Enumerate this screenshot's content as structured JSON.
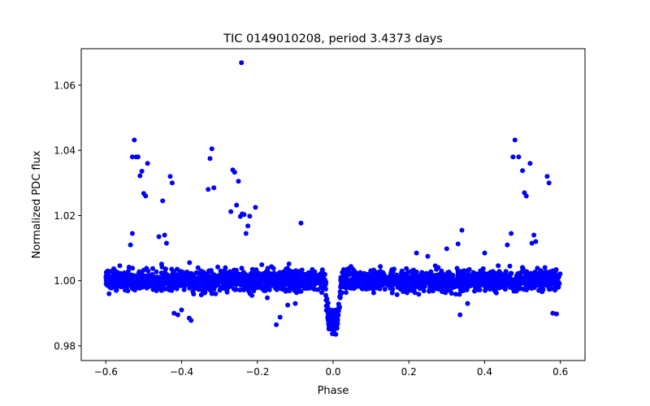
{
  "chart_data": {
    "type": "scatter",
    "title": "TIC 0149010208, period 3.4373 days",
    "xlabel": "Phase",
    "ylabel": "Normalized PDC flux",
    "xlim": [
      -0.665,
      0.665
    ],
    "ylim": [
      0.9755,
      1.0712
    ],
    "xticks": [
      -0.6,
      -0.4,
      -0.2,
      0.0,
      0.2,
      0.4,
      0.6
    ],
    "xtick_labels": [
      "−0.6",
      "−0.4",
      "−0.2",
      "0.0",
      "0.2",
      "0.4",
      "0.6"
    ],
    "yticks": [
      0.98,
      1.0,
      1.02,
      1.04,
      1.06
    ],
    "ytick_labels": [
      "0.98",
      "1.00",
      "1.02",
      "1.04",
      "1.06"
    ],
    "grid": false,
    "marker_color": "#0000ff",
    "series": [
      {
        "name": "",
        "baseline": 1.0,
        "baseline_scatter": 0.0028,
        "phase_range": [
          -0.6,
          0.6
        ],
        "transit": {
          "center_phase": 0.0,
          "half_width": 0.02,
          "depth": 0.015
        },
        "outliers": [
          [
            -0.545,
            1.0015
          ],
          [
            -0.53,
            1.038
          ],
          [
            -0.525,
            1.0432
          ],
          [
            -0.52,
            1.038
          ],
          [
            -0.515,
            1.038
          ],
          [
            -0.51,
            1.0322
          ],
          [
            -0.505,
            1.0336
          ],
          [
            -0.5,
            1.0268
          ],
          [
            -0.495,
            1.026
          ],
          [
            -0.49,
            1.036
          ],
          [
            -0.45,
            1.0245
          ],
          [
            -0.44,
            1.0115
          ],
          [
            -0.43,
            1.032
          ],
          [
            -0.425,
            1.03
          ],
          [
            -0.53,
            1.0145
          ],
          [
            -0.535,
            1.011
          ],
          [
            -0.46,
            1.0135
          ],
          [
            -0.445,
            1.014
          ],
          [
            -0.42,
            0.99
          ],
          [
            -0.41,
            0.9895
          ],
          [
            -0.4,
            0.991
          ],
          [
            -0.38,
            0.9885
          ],
          [
            -0.375,
            0.9878
          ],
          [
            -0.33,
            1.028
          ],
          [
            -0.32,
            1.0405
          ],
          [
            -0.325,
            1.0375
          ],
          [
            -0.315,
            1.0285
          ],
          [
            -0.27,
            1.0212
          ],
          [
            -0.265,
            1.034
          ],
          [
            -0.26,
            1.0333
          ],
          [
            -0.25,
            1.0305
          ],
          [
            -0.245,
            1.0197
          ],
          [
            -0.24,
            1.0205
          ],
          [
            -0.235,
            1.0203
          ],
          [
            -0.23,
            1.0145
          ],
          [
            -0.225,
            1.0168
          ],
          [
            -0.22,
            1.0198
          ],
          [
            -0.205,
            1.0225
          ],
          [
            -0.242,
            1.0669
          ],
          [
            -0.255,
            1.0232
          ],
          [
            -0.15,
            0.9865
          ],
          [
            -0.14,
            0.9888
          ],
          [
            -0.085,
            1.0177
          ],
          [
            -0.12,
            0.9925
          ],
          [
            -0.1,
            0.993
          ],
          [
            0.3,
            1.0098
          ],
          [
            0.34,
            1.0155
          ],
          [
            0.335,
            0.9895
          ],
          [
            0.33,
            1.0113
          ],
          [
            0.355,
            0.993
          ],
          [
            0.46,
            1.011
          ],
          [
            0.47,
            1.0145
          ],
          [
            0.475,
            1.038
          ],
          [
            0.48,
            1.0432
          ],
          [
            0.49,
            1.038
          ],
          [
            0.5,
            1.0338
          ],
          [
            0.505,
            1.027
          ],
          [
            0.51,
            1.026
          ],
          [
            0.52,
            1.036
          ],
          [
            0.525,
            1.0115
          ],
          [
            0.53,
            1.014
          ],
          [
            0.535,
            1.012
          ],
          [
            0.565,
            1.032
          ],
          [
            0.57,
            1.03
          ],
          [
            0.58,
            0.99
          ],
          [
            0.59,
            0.9898
          ],
          [
            0.22,
            1.0085
          ],
          [
            0.25,
            1.0075
          ],
          [
            0.4,
            1.0085
          ]
        ]
      }
    ]
  }
}
